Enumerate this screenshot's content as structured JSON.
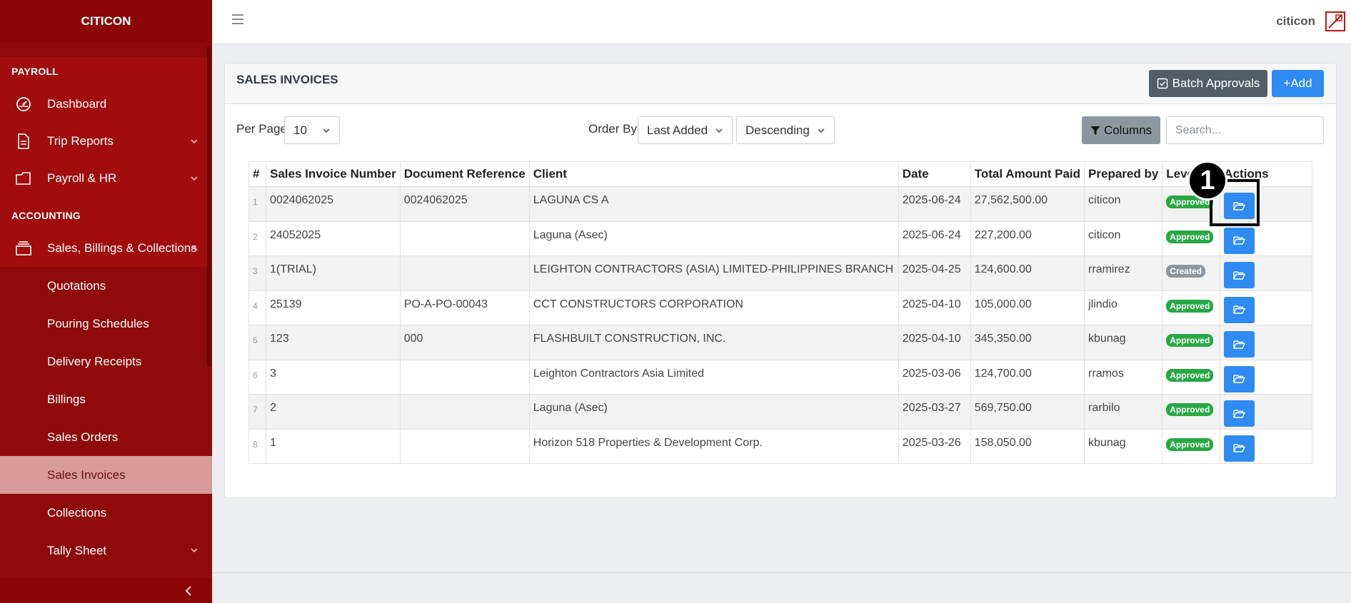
{
  "sidebar": {
    "brand": "CITICON",
    "sections": {
      "payroll": "PAYROLL",
      "accounting": "ACCOUNTING"
    },
    "payroll_items": [
      {
        "label": "Dashboard",
        "icon": "gauge-icon"
      },
      {
        "label": "Trip Reports",
        "icon": "document-icon"
      },
      {
        "label": "Payroll & HR",
        "icon": "folder-icon"
      }
    ],
    "accounting_parent": {
      "label": "Sales, Billings & Collections",
      "icon": "layers-icon"
    },
    "accounting_items": [
      "Quotations",
      "Pouring Schedules",
      "Delivery Receipts",
      "Billings",
      "Sales Orders",
      "Sales Invoices",
      "Collections",
      "Tally Sheet"
    ],
    "active_item": "Sales Invoices"
  },
  "header": {
    "username": "citicon"
  },
  "page": {
    "title": "SALES INVOICES",
    "batch_button": "Batch Approvals",
    "add_button": "+Add",
    "per_page_label": "Per Page",
    "per_page_value": "10",
    "order_by_label": "Order By",
    "order_by_value": "Last Added",
    "direction_value": "Descending",
    "columns_button": "Columns",
    "search_placeholder": "Search..."
  },
  "table": {
    "headers": [
      "#",
      "Sales Invoice Number",
      "Document Reference",
      "Client",
      "Date",
      "Total Amount Paid",
      "Prepared by",
      "Level",
      "Actions"
    ],
    "rows": [
      {
        "idx": "1",
        "number": "0024062025",
        "ref": "0024062025",
        "client": "LAGUNA CS A",
        "date": "2025-06-24",
        "amount": "27,562,500.00",
        "by": "citicon",
        "level": "Approved"
      },
      {
        "idx": "2",
        "number": "24052025",
        "ref": "",
        "client": "Laguna (Asec)",
        "date": "2025-06-24",
        "amount": "227,200.00",
        "by": "citicon",
        "level": "Approved"
      },
      {
        "idx": "3",
        "number": "1(TRIAL)",
        "ref": "",
        "client": "LEIGHTON CONTRACTORS (ASIA) LIMITED-PHILIPPINES BRANCH",
        "date": "2025-04-25",
        "amount": "124,600.00",
        "by": "rramirez",
        "level": "Created"
      },
      {
        "idx": "4",
        "number": "25139",
        "ref": "PO-A-PO-00043",
        "client": "CCT CONSTRUCTORS CORPORATION",
        "date": "2025-04-10",
        "amount": "105,000.00",
        "by": "jlindio",
        "level": "Approved"
      },
      {
        "idx": "5",
        "number": "123",
        "ref": "000",
        "client": "FLASHBUILT CONSTRUCTION, INC.",
        "date": "2025-04-10",
        "amount": "345,350.00",
        "by": "kbunag",
        "level": "Approved"
      },
      {
        "idx": "6",
        "number": "3",
        "ref": "",
        "client": "Leighton Contractors Asia Limited",
        "date": "2025-03-06",
        "amount": "124,700.00",
        "by": "rramos",
        "level": "Approved"
      },
      {
        "idx": "7",
        "number": "2",
        "ref": "",
        "client": "Laguna (Asec)",
        "date": "2025-03-27",
        "amount": "569,750.00",
        "by": "rarbilo",
        "level": "Approved"
      },
      {
        "idx": "8",
        "number": "1",
        "ref": "",
        "client": "Horizon 518 Properties & Development Corp.",
        "date": "2025-03-26",
        "amount": "158,050.00",
        "by": "kbunag",
        "level": "Approved"
      }
    ]
  },
  "annotation": {
    "number": "1"
  },
  "colors": {
    "sidebar": "#8f0a0a",
    "active_item_bg": "#d99a9a",
    "primary": "#2d8bf2",
    "approved": "#27a844",
    "created": "#8d96a0"
  }
}
